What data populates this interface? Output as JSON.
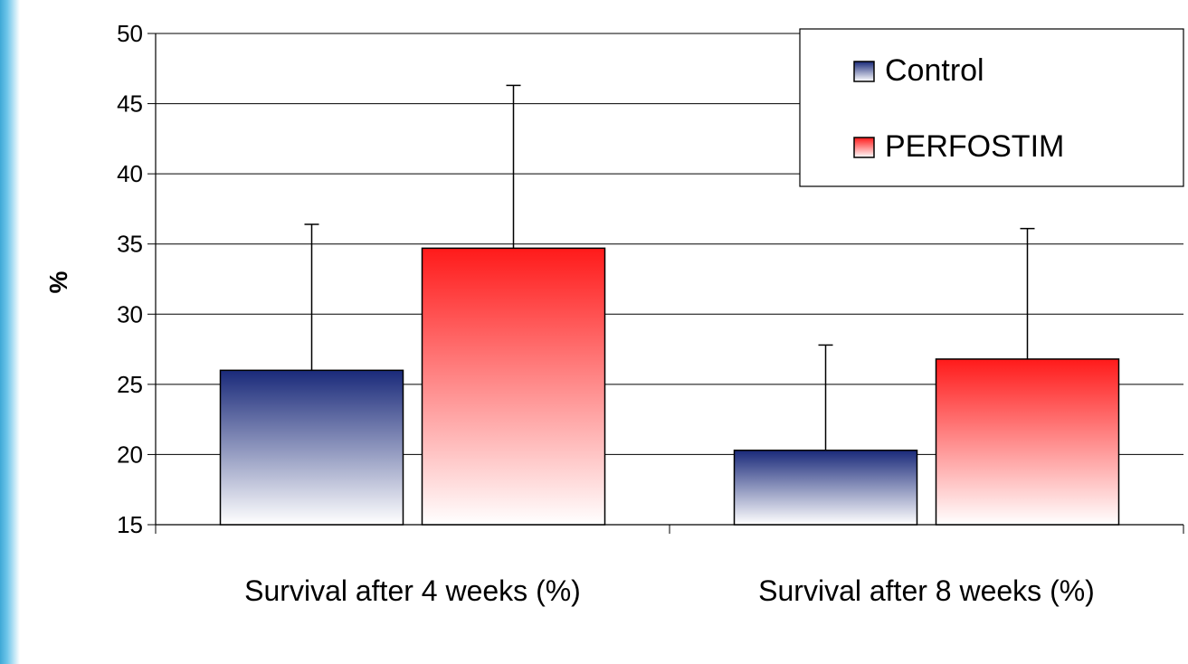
{
  "chart_data": {
    "type": "bar",
    "categories": [
      "Survival after 4 weeks (%)",
      "Survival after 8 weeks (%)"
    ],
    "series": [
      {
        "name": "Control",
        "values": [
          26,
          20.3
        ],
        "error": [
          10.4,
          7.5
        ],
        "color": "#1a2a7a"
      },
      {
        "name": "PERFOSTIM",
        "values": [
          34.7,
          26.8
        ],
        "error": [
          11.6,
          9.3
        ],
        "color": "#ff1a1a"
      }
    ],
    "title": "",
    "xlabel": "",
    "ylabel": "%",
    "ylim": [
      15,
      50
    ],
    "yticks": [
      15,
      20,
      25,
      30,
      35,
      40,
      45,
      50
    ],
    "grid": true,
    "legend_position": "top-right"
  }
}
